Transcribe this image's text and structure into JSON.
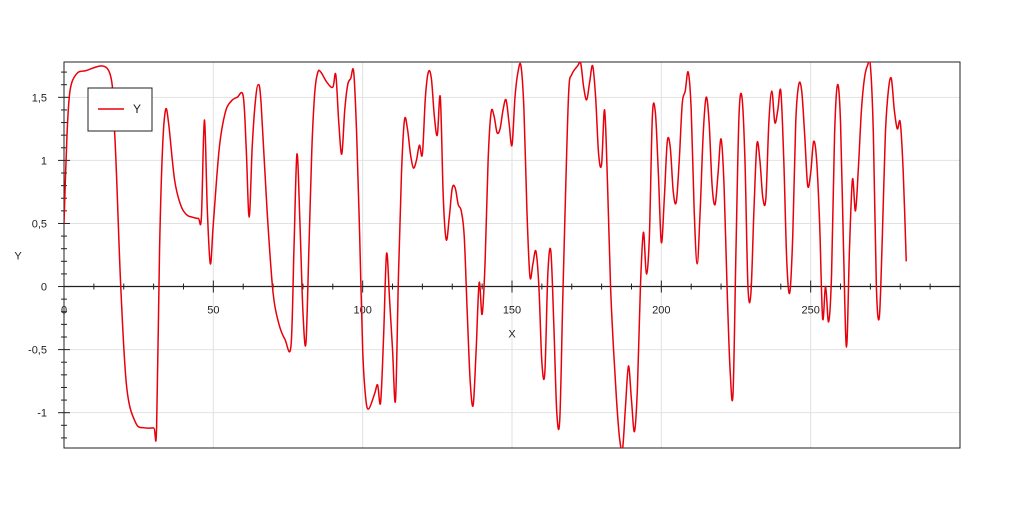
{
  "chart_data": {
    "type": "line",
    "title": "",
    "xlabel": "X",
    "ylabel": "Y",
    "xlim": [
      0,
      300
    ],
    "ylim": [
      -1.28,
      1.78
    ],
    "x_ticks": [
      0,
      50,
      100,
      150,
      200,
      250
    ],
    "x_tick_labels": [
      "0",
      "50",
      "100",
      "150",
      "200",
      "250"
    ],
    "y_ticks": [
      -1,
      -0.5,
      0,
      0.5,
      1,
      1.5
    ],
    "y_tick_labels": [
      "-1",
      "-0,5",
      "0",
      "0,5",
      "1",
      "1,5"
    ],
    "grid": true,
    "legend_position": "top-left",
    "series": [
      {
        "name": "Y",
        "color": "#e8000b",
        "points": [
          [
            0,
            0.5
          ],
          [
            1,
            1.2
          ],
          [
            2,
            1.55
          ],
          [
            4,
            1.68
          ],
          [
            7,
            1.71
          ],
          [
            15,
            1.71
          ],
          [
            17,
            1.2
          ],
          [
            19,
            0.0
          ],
          [
            21,
            -0.8
          ],
          [
            24,
            -1.08
          ],
          [
            27,
            -1.12
          ],
          [
            30,
            -1.12
          ],
          [
            31,
            -1.12
          ],
          [
            32,
            0.3
          ],
          [
            33,
            1.1
          ],
          [
            34,
            1.4
          ],
          [
            35,
            1.3
          ],
          [
            37,
            0.85
          ],
          [
            39,
            0.65
          ],
          [
            41,
            0.57
          ],
          [
            43,
            0.55
          ],
          [
            45,
            0.54
          ],
          [
            46,
            0.55
          ],
          [
            47,
            1.32
          ],
          [
            48,
            0.6
          ],
          [
            49,
            0.18
          ],
          [
            50,
            0.5
          ],
          [
            52,
            1.1
          ],
          [
            54,
            1.38
          ],
          [
            56,
            1.47
          ],
          [
            58,
            1.5
          ],
          [
            60,
            1.51
          ],
          [
            61,
            1.1
          ],
          [
            62,
            0.55
          ],
          [
            63,
            1.1
          ],
          [
            64,
            1.45
          ],
          [
            65,
            1.6
          ],
          [
            66,
            1.45
          ],
          [
            68,
            0.6
          ],
          [
            70,
            -0.05
          ],
          [
            72,
            -0.3
          ],
          [
            74,
            -0.42
          ],
          [
            76,
            -0.47
          ],
          [
            77,
            0.3
          ],
          [
            78,
            1.05
          ],
          [
            79,
            0.5
          ],
          [
            80,
            -0.2
          ],
          [
            81,
            -0.45
          ],
          [
            82,
            0.3
          ],
          [
            83,
            1.1
          ],
          [
            84,
            1.55
          ],
          [
            85,
            1.7
          ],
          [
            86,
            1.7
          ],
          [
            88,
            1.62
          ],
          [
            90,
            1.58
          ],
          [
            91,
            1.68
          ],
          [
            92,
            1.3
          ],
          [
            93,
            1.05
          ],
          [
            94,
            1.4
          ],
          [
            95,
            1.6
          ],
          [
            96,
            1.65
          ],
          [
            97,
            1.7
          ],
          [
            98,
            1.2
          ],
          [
            99,
            0.4
          ],
          [
            100,
            -0.5
          ],
          [
            101,
            -0.88
          ],
          [
            102,
            -0.97
          ],
          [
            104,
            -0.85
          ],
          [
            105,
            -0.78
          ],
          [
            106,
            -0.92
          ],
          [
            107,
            -0.4
          ],
          [
            108,
            0.26
          ],
          [
            109,
            -0.1
          ],
          [
            110,
            -0.5
          ],
          [
            111,
            -0.9
          ],
          [
            112,
            0.1
          ],
          [
            113,
            0.9
          ],
          [
            114,
            1.32
          ],
          [
            115,
            1.25
          ],
          [
            116,
            1.05
          ],
          [
            117,
            0.94
          ],
          [
            118,
            1.0
          ],
          [
            119,
            1.12
          ],
          [
            120,
            1.05
          ],
          [
            121,
            1.5
          ],
          [
            122,
            1.7
          ],
          [
            123,
            1.65
          ],
          [
            124,
            1.35
          ],
          [
            125,
            1.2
          ],
          [
            126,
            1.5
          ],
          [
            127,
            0.7
          ],
          [
            128,
            0.37
          ],
          [
            129,
            0.55
          ],
          [
            130,
            0.78
          ],
          [
            131,
            0.78
          ],
          [
            132,
            0.65
          ],
          [
            133,
            0.6
          ],
          [
            134,
            0.4
          ],
          [
            135,
            -0.2
          ],
          [
            136,
            -0.75
          ],
          [
            137,
            -0.94
          ],
          [
            138,
            -0.5
          ],
          [
            139,
            0.03
          ],
          [
            140,
            -0.22
          ],
          [
            141,
            0.2
          ],
          [
            142,
            1.0
          ],
          [
            143,
            1.38
          ],
          [
            144,
            1.35
          ],
          [
            145,
            1.22
          ],
          [
            146,
            1.25
          ],
          [
            147,
            1.4
          ],
          [
            148,
            1.48
          ],
          [
            149,
            1.3
          ],
          [
            150,
            1.12
          ],
          [
            151,
            1.5
          ],
          [
            152,
            1.7
          ],
          [
            153,
            1.75
          ],
          [
            154,
            1.4
          ],
          [
            155,
            0.6
          ],
          [
            156,
            0.08
          ],
          [
            157,
            0.18
          ],
          [
            158,
            0.28
          ],
          [
            159,
            0.0
          ],
          [
            160,
            -0.6
          ],
          [
            161,
            -0.68
          ],
          [
            162,
            0.1
          ],
          [
            163,
            0.28
          ],
          [
            164,
            -0.3
          ],
          [
            165,
            -1.0
          ],
          [
            166,
            -1.05
          ],
          [
            167,
            -0.1
          ],
          [
            168,
            0.8
          ],
          [
            169,
            1.55
          ],
          [
            170,
            1.68
          ],
          [
            172,
            1.75
          ],
          [
            173,
            1.77
          ],
          [
            174,
            1.58
          ],
          [
            175,
            1.48
          ],
          [
            176,
            1.62
          ],
          [
            177,
            1.75
          ],
          [
            178,
            1.5
          ],
          [
            179,
            1.05
          ],
          [
            180,
            0.97
          ],
          [
            181,
            1.4
          ],
          [
            182,
            0.8
          ],
          [
            183,
            0.0
          ],
          [
            184,
            -0.5
          ],
          [
            185,
            -0.9
          ],
          [
            186,
            -1.2
          ],
          [
            187,
            -1.29
          ],
          [
            188,
            -0.95
          ],
          [
            189,
            -0.63
          ],
          [
            190,
            -0.9
          ],
          [
            191,
            -1.15
          ],
          [
            192,
            -0.8
          ],
          [
            193,
            0.0
          ],
          [
            194,
            0.43
          ],
          [
            195,
            0.1
          ],
          [
            196,
            0.4
          ],
          [
            197,
            1.35
          ],
          [
            198,
            1.38
          ],
          [
            199,
            0.9
          ],
          [
            200,
            0.35
          ],
          [
            201,
            0.7
          ],
          [
            202,
            1.15
          ],
          [
            203,
            1.1
          ],
          [
            204,
            0.75
          ],
          [
            205,
            0.67
          ],
          [
            206,
            1.0
          ],
          [
            207,
            1.45
          ],
          [
            208,
            1.55
          ],
          [
            209,
            1.7
          ],
          [
            210,
            1.4
          ],
          [
            211,
            0.6
          ],
          [
            212,
            0.18
          ],
          [
            213,
            0.6
          ],
          [
            214,
            1.2
          ],
          [
            215,
            1.5
          ],
          [
            216,
            1.3
          ],
          [
            217,
            0.8
          ],
          [
            218,
            0.65
          ],
          [
            219,
            0.9
          ],
          [
            220,
            1.17
          ],
          [
            221,
            0.8
          ],
          [
            222,
            0.0
          ],
          [
            223,
            -0.65
          ],
          [
            224,
            -0.85
          ],
          [
            225,
            0.3
          ],
          [
            226,
            1.35
          ],
          [
            227,
            1.5
          ],
          [
            228,
            1.0
          ],
          [
            229,
            0.0
          ],
          [
            230,
            -0.05
          ],
          [
            231,
            0.6
          ],
          [
            232,
            1.13
          ],
          [
            233,
            1.0
          ],
          [
            234,
            0.7
          ],
          [
            235,
            0.7
          ],
          [
            236,
            1.3
          ],
          [
            237,
            1.55
          ],
          [
            238,
            1.3
          ],
          [
            239,
            1.4
          ],
          [
            240,
            1.55
          ],
          [
            241,
            1.0
          ],
          [
            242,
            0.2
          ],
          [
            243,
            -0.05
          ],
          [
            244,
            0.4
          ],
          [
            245,
            1.3
          ],
          [
            246,
            1.6
          ],
          [
            247,
            1.55
          ],
          [
            248,
            1.2
          ],
          [
            249,
            0.8
          ],
          [
            250,
            0.9
          ],
          [
            251,
            1.15
          ],
          [
            252,
            1.0
          ],
          [
            253,
            0.5
          ],
          [
            254,
            -0.25
          ],
          [
            255,
            0.0
          ],
          [
            256,
            -0.28
          ],
          [
            257,
            0.1
          ],
          [
            258,
            1.2
          ],
          [
            259,
            1.6
          ],
          [
            260,
            1.3
          ],
          [
            261,
            0.3
          ],
          [
            262,
            -0.48
          ],
          [
            263,
            0.3
          ],
          [
            264,
            0.85
          ],
          [
            265,
            0.6
          ],
          [
            266,
            0.95
          ],
          [
            267,
            1.4
          ],
          [
            268,
            1.65
          ],
          [
            269,
            1.75
          ],
          [
            270,
            1.75
          ],
          [
            271,
            1.2
          ],
          [
            272,
            0.0
          ],
          [
            273,
            -0.24
          ],
          [
            274,
            0.4
          ],
          [
            275,
            1.2
          ],
          [
            276,
            1.55
          ],
          [
            277,
            1.65
          ],
          [
            278,
            1.4
          ],
          [
            279,
            1.25
          ],
          [
            280,
            1.3
          ],
          [
            281,
            0.9
          ],
          [
            282,
            0.2
          ]
        ]
      }
    ]
  }
}
